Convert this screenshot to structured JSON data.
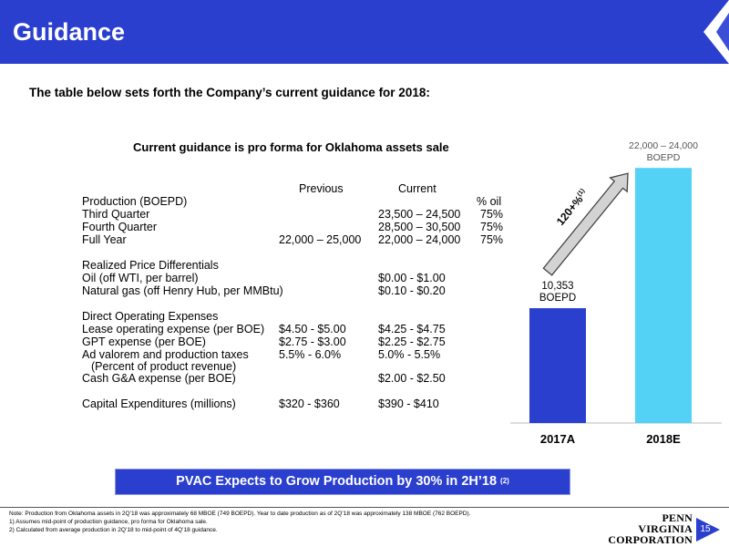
{
  "header": {
    "title": "Guidance"
  },
  "intro": "The table below sets forth the Company’s current guidance for 2018:",
  "table": {
    "heading": "Current guidance is pro forma for Oklahoma assets sale",
    "columns": {
      "previous": "Previous",
      "current": "Current",
      "pct_oil": "% oil"
    },
    "rows": [
      {
        "label": "Production (BOEPD)",
        "previous": "",
        "current": "",
        "pct_oil": "",
        "top": 214
      },
      {
        "label": "Third Quarter",
        "previous": "",
        "current": "23,500 – 24,500",
        "pct_oil": "75%",
        "top": 228
      },
      {
        "label": "Fourth Quarter",
        "previous": "",
        "current": "28,500 – 30,500",
        "pct_oil": "75%",
        "top": 242
      },
      {
        "label": "Full Year",
        "previous": "22,000 – 25,000",
        "current": "22,000 – 24,000",
        "pct_oil": "75%",
        "top": 256
      },
      {
        "label": "Realized Price Differentials",
        "previous": "",
        "current": "",
        "pct_oil": "",
        "top": 284
      },
      {
        "label": "Oil (off WTI, per barrel)",
        "previous": "",
        "current": "$0.00 - $1.00",
        "pct_oil": "",
        "top": 298
      },
      {
        "label": "Natural gas (off Henry Hub, per MMBtu)",
        "previous": "",
        "current": "$0.10 - $0.20",
        "pct_oil": "",
        "top": 312
      },
      {
        "label": "Direct Operating Expenses",
        "previous": "",
        "current": "",
        "pct_oil": "",
        "top": 340
      },
      {
        "label": "Lease operating expense (per BOE)",
        "previous": "$4.50 - $5.00",
        "current": "$4.25 - $4.75",
        "pct_oil": "",
        "top": 354
      },
      {
        "label": "GPT expense (per BOE)",
        "previous": "$2.75 - $3.00",
        "current": "$2.25 - $2.75",
        "pct_oil": "",
        "top": 368
      },
      {
        "label": "Ad valorem and production taxes",
        "previous": "5.5% - 6.0%",
        "current": "5.0% - 5.5%",
        "pct_oil": "",
        "top": 382
      },
      {
        "label": "(Percent of product revenue)",
        "previous": "",
        "current": "",
        "pct_oil": "",
        "top": 395,
        "indent": true
      },
      {
        "label": "Cash G&A expense (per BOE)",
        "previous": "",
        "current": "$2.00 - $2.50",
        "pct_oil": "",
        "top": 408
      },
      {
        "label": "Capital Expenditures (millions)",
        "previous": "$320 - $360",
        "current": "$390 - $410",
        "pct_oil": "",
        "top": 436
      }
    ]
  },
  "chart_data": {
    "type": "bar",
    "categories": [
      "2017A",
      "2018E"
    ],
    "values": [
      10353,
      23000
    ],
    "data_labels": [
      "10,353\nBOEPD",
      "22,000 – 24,000\nBOEPD"
    ],
    "bar_colors": [
      "#2b3fcf",
      "#54d2f5"
    ],
    "annotation": "120+%",
    "annotation_sup": "(1)",
    "ylim": [
      0,
      24000
    ],
    "grid": false,
    "title": "",
    "xlabel": "",
    "ylabel": ""
  },
  "banner": {
    "text": "PVAC Expects to Grow Production by 30% in 2H’18 ",
    "sup": "(2)"
  },
  "notes": [
    "Note: Production from Oklahoma assets in 2Q’18 was approximately 68 MBOE (749 BOEPD).  Year to date production as of 2Q’18 was approximately 138 MBOE (762 BOEPD).",
    "1) Assumes mid-point of production guidance, pro forma for Oklahoma sale.",
    "2) Calculated from average production in 2Q’18 to mid-point of 4Q’18 guidance."
  ],
  "logo": {
    "line1": "PENN VIRGINIA",
    "line2": "CORPORATION"
  },
  "page_number": "15",
  "colors": {
    "brand_blue": "#2b3fcf",
    "light_blue": "#54d2f5"
  }
}
